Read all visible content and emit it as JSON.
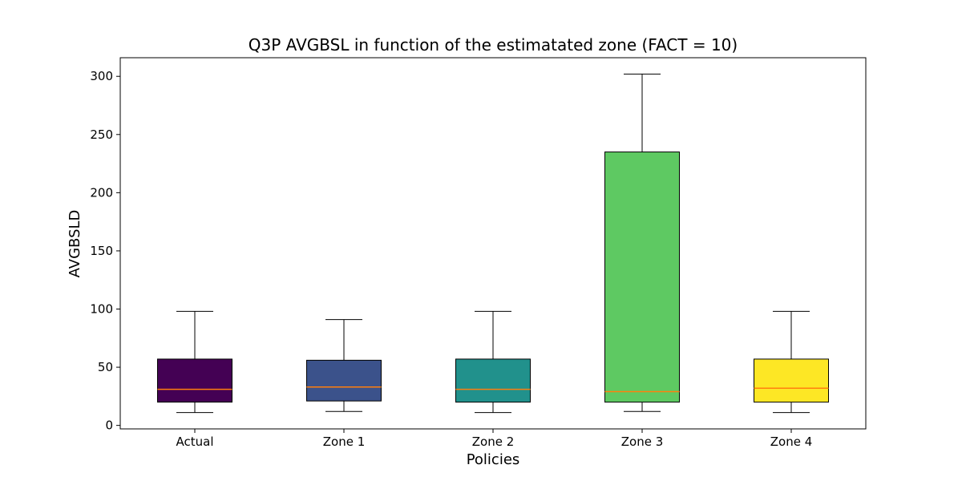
{
  "chart_data": {
    "type": "box",
    "title": "Q3P AVGBSL in function of the estimatated zone (FACT = 10)",
    "xlabel": "Policies",
    "ylabel": "AVGBSLD",
    "ylim": [
      -3,
      316
    ],
    "yticks": [
      0,
      50,
      100,
      150,
      200,
      250,
      300
    ],
    "grid": false,
    "median_color": "#ff7f0e",
    "categories": [
      "Actual",
      "Zone 1",
      "Zone 2",
      "Zone 3",
      "Zone 4"
    ],
    "boxes": [
      {
        "category": "Actual",
        "whislo": 11,
        "q1": 20,
        "med": 31,
        "q3": 57,
        "whishi": 98,
        "color": "#440154"
      },
      {
        "category": "Zone 1",
        "whislo": 12,
        "q1": 21,
        "med": 33,
        "q3": 56,
        "whishi": 91,
        "color": "#3b528b"
      },
      {
        "category": "Zone 2",
        "whislo": 11,
        "q1": 20,
        "med": 31,
        "q3": 57,
        "whishi": 98,
        "color": "#21918c"
      },
      {
        "category": "Zone 3",
        "whislo": 12,
        "q1": 20,
        "med": 29,
        "q3": 235,
        "whishi": 302,
        "color": "#5ec962"
      },
      {
        "category": "Zone 4",
        "whislo": 11,
        "q1": 20,
        "med": 32,
        "q3": 57,
        "whishi": 98,
        "color": "#fde725"
      }
    ]
  }
}
